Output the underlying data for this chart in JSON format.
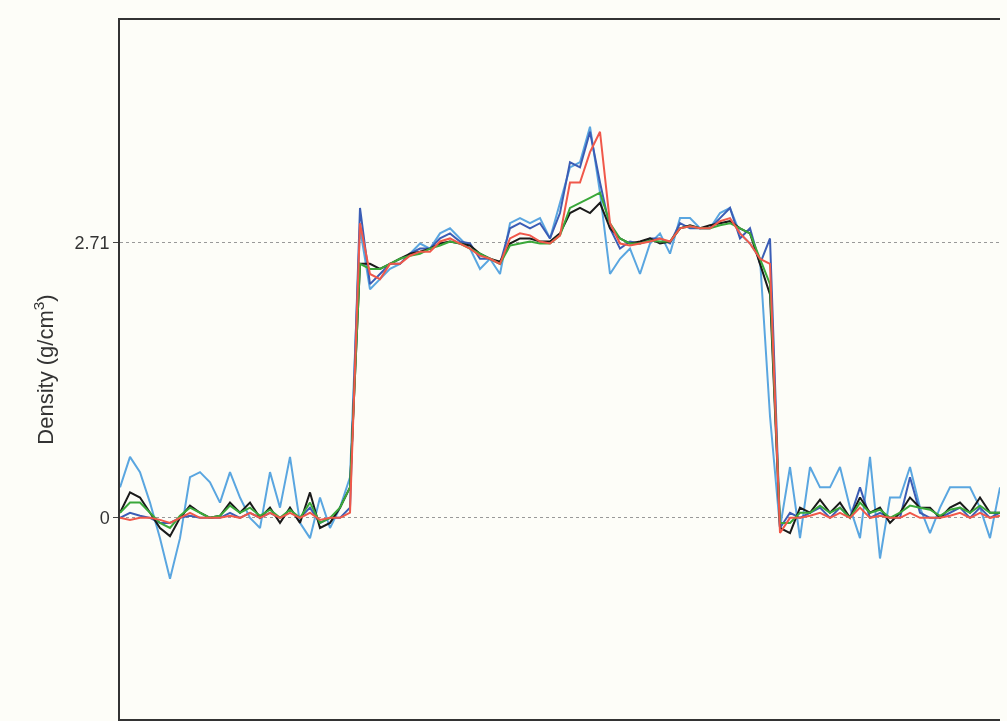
{
  "chart_data": {
    "type": "line",
    "ylabel": "Density (g/cm$^{3}$)",
    "categories": [
      null,
      null,
      null,
      null,
      null,
      null,
      null,
      null,
      null,
      null,
      null,
      null,
      null,
      null,
      null,
      null,
      null,
      null,
      null,
      null,
      null,
      null,
      null,
      null,
      null,
      null,
      null,
      null,
      null,
      null,
      null,
      null,
      null,
      null,
      null,
      null,
      null,
      null,
      null,
      null,
      null,
      null,
      null,
      null,
      null,
      null,
      null,
      null,
      null,
      null,
      null,
      null,
      null,
      null,
      null,
      null,
      null,
      null,
      null,
      null,
      null,
      null,
      null,
      null,
      null,
      null,
      null,
      null,
      null,
      null,
      null,
      null,
      null,
      null,
      null,
      null,
      null,
      null,
      null,
      null,
      null,
      null,
      null,
      null,
      null,
      null,
      null,
      null,
      null
    ],
    "series": [
      {
        "color": "#5aa6e0",
        "values": [
          0.3,
          0.6,
          0.45,
          0.15,
          -0.2,
          -0.6,
          -0.2,
          0.4,
          0.45,
          0.35,
          0.15,
          0.45,
          0.2,
          0,
          -0.1,
          0.45,
          0.1,
          0.6,
          -0.05,
          -0.2,
          0.2,
          -0.1,
          0.1,
          0.4,
          2.85,
          2.25,
          2.35,
          2.45,
          2.5,
          2.6,
          2.7,
          2.65,
          2.8,
          2.85,
          2.75,
          2.65,
          2.45,
          2.55,
          2.4,
          2.9,
          2.95,
          2.9,
          2.95,
          2.75,
          3.1,
          3.45,
          3.5,
          3.85,
          3.2,
          2.4,
          2.55,
          2.65,
          2.4,
          2.7,
          2.8,
          2.6,
          2.95,
          2.95,
          2.85,
          2.85,
          3.0,
          3.05,
          2.8,
          2.7,
          2.55,
          1.0,
          -0.1,
          0.5,
          -0.2,
          0.5,
          0.3,
          0.3,
          0.5,
          0.1,
          -0.2,
          0.6,
          -0.4,
          0.2,
          0.2,
          0.5,
          0.1,
          -0.15,
          0.1,
          0.3,
          0.3,
          0.3,
          0.1,
          -0.2,
          0.3
        ]
      },
      {
        "color": "#3b5db5",
        "values": [
          0,
          0.05,
          0.02,
          0,
          -0.05,
          -0.05,
          0,
          0.02,
          0,
          0,
          0,
          0.05,
          0,
          0.05,
          0,
          0.05,
          0,
          null,
          0,
          0.1,
          -0.05,
          0,
          0,
          0.1,
          3.05,
          2.3,
          2.4,
          2.5,
          2.5,
          2.6,
          2.65,
          2.65,
          2.75,
          2.8,
          2.72,
          2.7,
          2.55,
          2.55,
          2.5,
          2.85,
          2.9,
          2.85,
          2.9,
          2.75,
          3.0,
          3.5,
          3.45,
          3.8,
          3.3,
          2.85,
          2.65,
          2.72,
          2.7,
          2.75,
          2.75,
          2.7,
          2.9,
          2.85,
          2.85,
          2.85,
          2.95,
          3.05,
          2.75,
          2.85,
          2.5,
          2.75,
          -0.1,
          0.05,
          0,
          0.05,
          0.1,
          0,
          0.1,
          0,
          0.3,
          0,
          0.05,
          0,
          0,
          0.4,
          0.05,
          0,
          0,
          0.05,
          0.1,
          0,
          0.1,
          0,
          0.05
        ]
      },
      {
        "color": "#1a1a1a",
        "values": [
          0.05,
          0.25,
          0.2,
          0.05,
          -0.1,
          -0.18,
          0,
          0.12,
          0.05,
          0,
          0.02,
          0.15,
          0.05,
          0.15,
          0,
          0.1,
          -0.05,
          0.1,
          -0.05,
          0.25,
          -0.1,
          -0.05,
          0.1,
          0.3,
          2.5,
          2.5,
          2.45,
          2.5,
          2.55,
          2.6,
          2.62,
          2.65,
          2.7,
          2.72,
          2.7,
          2.68,
          2.6,
          2.55,
          2.52,
          2.7,
          2.75,
          2.75,
          2.72,
          2.72,
          2.8,
          3.0,
          3.05,
          3.0,
          3.1,
          2.85,
          2.75,
          2.7,
          2.72,
          2.75,
          2.7,
          2.72,
          2.85,
          2.88,
          2.85,
          2.88,
          2.9,
          2.92,
          2.85,
          2.8,
          2.5,
          2.2,
          -0.1,
          -0.15,
          0.1,
          0.05,
          0.18,
          0.05,
          0.15,
          0,
          0.2,
          0.05,
          0.1,
          -0.05,
          0.05,
          0.2,
          0.1,
          0.1,
          0,
          0.1,
          0.15,
          0.05,
          0.2,
          0.05,
          0.05
        ]
      },
      {
        "color": "#3aa83a",
        "values": [
          0.05,
          0.15,
          0.15,
          0.05,
          -0.05,
          -0.1,
          0.02,
          0.1,
          0.05,
          0,
          0.02,
          0.12,
          0.05,
          0.1,
          0.02,
          0.08,
          0,
          0.08,
          0,
          0.15,
          -0.05,
          0,
          0.1,
          0.3,
          2.5,
          2.45,
          2.45,
          2.5,
          2.55,
          2.58,
          2.6,
          2.65,
          2.68,
          2.72,
          2.7,
          2.65,
          2.6,
          2.55,
          2.5,
          2.68,
          2.7,
          2.72,
          2.7,
          2.7,
          2.78,
          3.05,
          3.1,
          3.15,
          3.2,
          2.9,
          2.75,
          2.7,
          2.7,
          2.73,
          2.72,
          2.72,
          2.85,
          2.87,
          2.85,
          2.85,
          2.88,
          2.9,
          2.85,
          2.8,
          2.55,
          2.3,
          -0.05,
          -0.05,
          0.05,
          0.05,
          0.12,
          0.05,
          0.1,
          0,
          0.15,
          0.05,
          0.08,
          0,
          0.05,
          0.12,
          0.1,
          0.08,
          0.02,
          0.08,
          0.1,
          0.05,
          0.12,
          0.05,
          0.05
        ]
      },
      {
        "color": "#f0584a",
        "values": [
          0,
          -0.02,
          0,
          0,
          -0.02,
          -0.05,
          0,
          0.05,
          0,
          0,
          0,
          0.02,
          0,
          0.05,
          0,
          0.05,
          0,
          0.05,
          0,
          0.05,
          -0.02,
          0,
          0,
          0.05,
          2.9,
          2.4,
          2.35,
          2.5,
          2.5,
          2.58,
          2.62,
          2.62,
          2.72,
          2.75,
          2.7,
          2.65,
          2.58,
          2.55,
          2.5,
          2.75,
          2.8,
          2.78,
          2.72,
          2.7,
          2.78,
          3.3,
          3.3,
          3.6,
          3.8,
          2.9,
          2.7,
          2.68,
          2.7,
          2.72,
          2.75,
          2.72,
          2.85,
          2.87,
          2.85,
          2.85,
          2.92,
          2.95,
          2.8,
          2.7,
          2.55,
          2.5,
          -0.15,
          0,
          0,
          0.02,
          0.05,
          0,
          0.05,
          0,
          0.1,
          0,
          0.02,
          0,
          0,
          0.05,
          0,
          0,
          0,
          0.02,
          0.05,
          0,
          0.05,
          0,
          0.02
        ]
      }
    ],
    "ylim": [
      -1.98,
      4.9
    ],
    "yticks": [
      0,
      2.71
    ],
    "grid": "y",
    "line_style": "solid"
  }
}
